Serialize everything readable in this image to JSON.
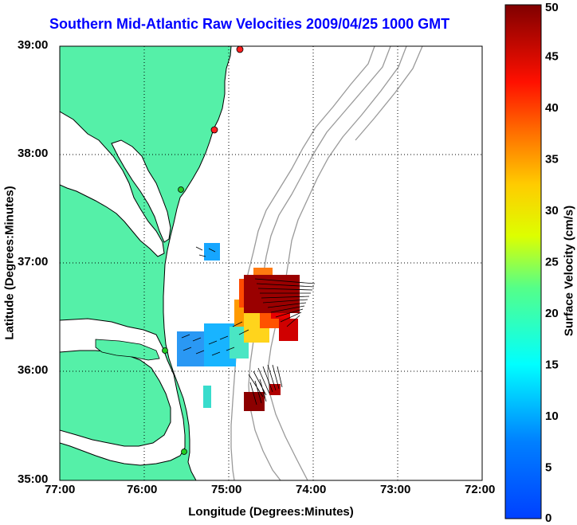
{
  "map": {
    "title": "Southern Mid-Atlantic Raw Velocities 2009/04/25 1000 GMT",
    "xlabel": "Longitude (Degrees:Minutes)",
    "ylabel": "Latitude (Degrees:Minutes)",
    "x_ticks": [
      "77:00",
      "76:00",
      "75:00",
      "74:00",
      "73:00",
      "72:00"
    ],
    "y_ticks": [
      "39:00",
      "38:00",
      "37:00",
      "36:00",
      "35:00"
    ],
    "lon_range": [
      -77,
      -72
    ],
    "lat_range": [
      35,
      39
    ],
    "grid": "dotted",
    "land_color": "#55f0a8",
    "bathymetry_color": "#9a9a9a",
    "station_markers": [
      {
        "lon": -74.87,
        "lat": 38.97,
        "color": "#ff2020"
      },
      {
        "lon": -75.09,
        "lat": 38.22,
        "color": "#ff2020"
      },
      {
        "lon": -75.48,
        "lat": 37.82,
        "color": "#22cc22"
      },
      {
        "lon": -75.71,
        "lat": 36.19,
        "color": "#22cc22"
      },
      {
        "lon": -75.48,
        "lat": 35.26,
        "color": "#22cc22"
      }
    ]
  },
  "colorbar": {
    "label": "Surface Velocity (cm/s)",
    "min": 0,
    "max": 50,
    "ticks": [
      "50",
      "45",
      "40",
      "35",
      "30",
      "25",
      "20",
      "15",
      "10",
      "5",
      "0"
    ],
    "colormap": "jet"
  }
}
